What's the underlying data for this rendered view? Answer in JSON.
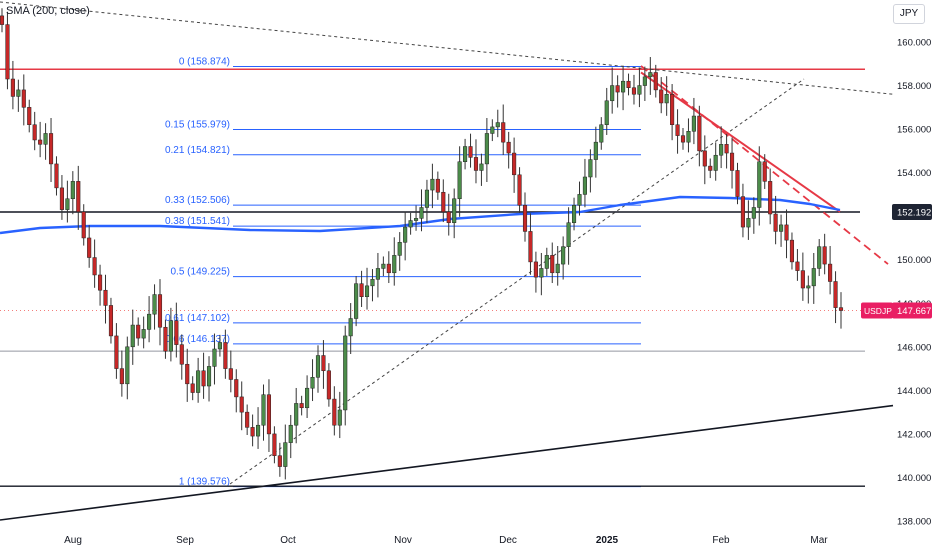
{
  "header": {
    "indicator_label": "SMA (200, close)",
    "currency_button": "JPY"
  },
  "colors": {
    "up": "#26a69a",
    "down": "#ef5350",
    "up_body": "#4c8c4a",
    "down_body": "#c62828",
    "fib": "#2962ff",
    "sma": "#2962ff",
    "trend_red": "#e63946",
    "price_tag": "#e91e63",
    "level_tag": "#1e2433"
  },
  "chart_data": {
    "type": "candlestick",
    "symbol": "USDJPY",
    "ylim": [
      137.5,
      161.5
    ],
    "y_ticks": [
      "138.000",
      "140.000",
      "142.000",
      "144.000",
      "146.000",
      "148.000",
      "150.000",
      "152.000",
      "154.000",
      "156.000",
      "158.000",
      "160.000"
    ],
    "x_labels": [
      "Aug",
      "Sep",
      "Oct",
      "Nov",
      "Dec",
      "2025",
      "Feb",
      "Mar"
    ],
    "current_price": {
      "label": "USDJPY",
      "value": "147.667"
    },
    "level_tag": {
      "value": "152.192"
    },
    "fib_levels": [
      {
        "ratio_label": "0 (158.874)",
        "price": 158.874
      },
      {
        "ratio_label": "0.15 (155.979)",
        "price": 155.979
      },
      {
        "ratio_label": "0.21 (154.821)",
        "price": 154.821
      },
      {
        "ratio_label": "0.33 (152.506)",
        "price": 152.506
      },
      {
        "ratio_label": "0.38 (151.541)",
        "price": 151.541
      },
      {
        "ratio_label": "0.5 (149.225)",
        "price": 149.225
      },
      {
        "ratio_label": "0.61 (147.102)",
        "price": 147.102
      },
      {
        "ratio_label": "0.66 (146.137)",
        "price": 146.137
      },
      {
        "ratio_label": "1 (139.576)",
        "price": 139.576
      }
    ],
    "horizontal_lines": [
      {
        "name": "resistance-red",
        "price": 158.75
      },
      {
        "name": "level-black",
        "price": 152.192
      },
      {
        "name": "support-gray",
        "price": 145.8
      },
      {
        "name": "low-black",
        "price": 139.6
      }
    ],
    "close_path": [
      160.8,
      158.3,
      157.5,
      157.8,
      157.0,
      156.2,
      155.5,
      155.3,
      155.8,
      154.4,
      153.3,
      152.3,
      152.8,
      153.6,
      152.2,
      151.0,
      150.1,
      149.3,
      148.6,
      147.9,
      146.5,
      145.0,
      144.3,
      146.0,
      147.0,
      146.4,
      146.8,
      147.5,
      148.4,
      146.9,
      145.8,
      147.2,
      146.1,
      145.2,
      144.3,
      143.9,
      144.9,
      144.2,
      145.1,
      145.9,
      146.2,
      145.0,
      144.5,
      143.7,
      143.0,
      142.3,
      141.9,
      142.4,
      143.8,
      142.0,
      141.0,
      140.5,
      141.6,
      142.4,
      143.4,
      143.2,
      144.1,
      144.6,
      145.6,
      144.9,
      143.6,
      142.4,
      143.1,
      146.5,
      147.3,
      148.9,
      148.3,
      148.8,
      149.1,
      149.6,
      149.8,
      149.4,
      150.2,
      150.8,
      151.5,
      151.8,
      151.9,
      152.4,
      153.2,
      153.7,
      153.1,
      152.2,
      151.7,
      152.8,
      154.5,
      155.2,
      154.7,
      154.1,
      154.4,
      155.8,
      156.1,
      156.3,
      155.4,
      154.9,
      153.9,
      152.5,
      151.3,
      149.9,
      149.2,
      149.6,
      150.2,
      149.4,
      149.8,
      150.6,
      151.7,
      152.5,
      153.0,
      153.8,
      154.6,
      155.4,
      156.2,
      157.3,
      158.0,
      157.7,
      158.2,
      157.9,
      157.6,
      158.0,
      158.4,
      158.6,
      157.8,
      157.2,
      157.6,
      156.2,
      155.7,
      155.4,
      155.9,
      156.6,
      155.0,
      154.3,
      154.1,
      154.8,
      155.3,
      154.9,
      154.1,
      152.9,
      151.5,
      151.9,
      152.4,
      154.5,
      153.6,
      152.1,
      151.3,
      151.6,
      150.9,
      149.9,
      149.5,
      148.7,
      148.8,
      149.6,
      150.6,
      149.8,
      149.0,
      147.8,
      147.667
    ]
  }
}
